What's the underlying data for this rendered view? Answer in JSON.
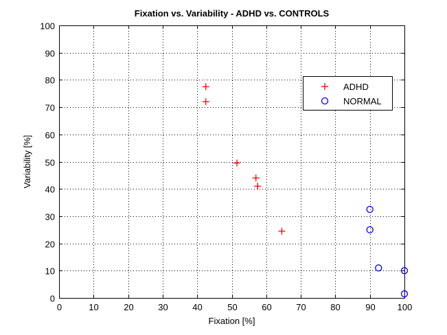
{
  "chart_data": {
    "type": "scatter",
    "title": "Fixation vs. Variability - ADHD vs. CONTROLS",
    "xlabel": "Fixation [%]",
    "ylabel": "Variability [%]",
    "xlim": [
      0,
      100
    ],
    "ylim": [
      0,
      100
    ],
    "xticks": [
      0,
      10,
      20,
      30,
      40,
      50,
      60,
      70,
      80,
      90,
      100
    ],
    "yticks": [
      0,
      10,
      20,
      30,
      40,
      50,
      60,
      70,
      80,
      90,
      100
    ],
    "grid": true,
    "legend_position": "upper-right",
    "series": [
      {
        "name": "ADHD",
        "marker": "plus",
        "color": "#ff0000",
        "points": [
          {
            "x": 42.5,
            "y": 77.5
          },
          {
            "x": 42.5,
            "y": 72
          },
          {
            "x": 51.5,
            "y": 49.5
          },
          {
            "x": 57,
            "y": 44
          },
          {
            "x": 57.5,
            "y": 41
          },
          {
            "x": 64.5,
            "y": 24.5
          }
        ]
      },
      {
        "name": "NORMAL",
        "marker": "circle",
        "color": "#0000ff",
        "points": [
          {
            "x": 90,
            "y": 32.5
          },
          {
            "x": 90,
            "y": 25
          },
          {
            "x": 92.5,
            "y": 11
          },
          {
            "x": 100,
            "y": 10
          },
          {
            "x": 100,
            "y": 1.5
          }
        ]
      }
    ]
  }
}
